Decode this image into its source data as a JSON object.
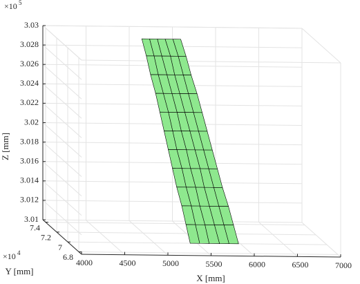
{
  "chart_data": {
    "type": "surface",
    "x_label": "X [mm]",
    "y_label": "Y [mm]",
    "z_label": "Z [mm]",
    "y_scale_base": "×10",
    "y_scale_exp": "4",
    "z_scale_base": "×10",
    "z_scale_exp": "5",
    "color": "#8ee88e",
    "edge_color": "#000000",
    "grid": true,
    "xlim": [
      4000,
      7000
    ],
    "xticks": [
      4000,
      4500,
      5000,
      5500,
      6000,
      6500,
      7000
    ],
    "ylim": [
      67500,
      74500
    ],
    "yticks": [
      {
        "value": 68000,
        "label": "6.8"
      },
      {
        "value": 70000,
        "label": "7"
      },
      {
        "value": 72000,
        "label": "7.2"
      },
      {
        "value": 74000,
        "label": "7.4"
      }
    ],
    "zlim": [
      301000,
      303000
    ],
    "zticks": [
      {
        "value": 301000,
        "label": "3.01"
      },
      {
        "value": 301200,
        "label": "3.012"
      },
      {
        "value": 301400,
        "label": "3.014"
      },
      {
        "value": 301600,
        "label": "3.016"
      },
      {
        "value": 301800,
        "label": "3.018"
      },
      {
        "value": 302000,
        "label": "3.02"
      },
      {
        "value": 302200,
        "label": "3.022"
      },
      {
        "value": 302400,
        "label": "3.024"
      },
      {
        "value": 302600,
        "label": "3.026"
      },
      {
        "value": 302800,
        "label": "3.028"
      },
      {
        "value": 303000,
        "label": "3.03"
      }
    ],
    "z": [
      301100,
      301270,
      301440,
      301610,
      301780,
      301950,
      302120,
      302290,
      302460,
      302630,
      302800,
      302950
    ],
    "y": [
      68000,
      68450,
      68900,
      69350,
      69800,
      70250,
      70700,
      71150,
      71600,
      72050,
      72500,
      73000
    ],
    "x": [
      [
        5290,
        5400,
        5510,
        5630,
        5740,
        5850
      ],
      [
        5270,
        5380,
        5490,
        5600,
        5710,
        5820
      ],
      [
        5250,
        5360,
        5460,
        5570,
        5680,
        5790
      ],
      [
        5220,
        5330,
        5440,
        5540,
        5650,
        5750
      ],
      [
        5200,
        5310,
        5410,
        5520,
        5620,
        5720
      ],
      [
        5180,
        5280,
        5390,
        5490,
        5590,
        5690
      ],
      [
        5160,
        5260,
        5360,
        5460,
        5560,
        5660
      ],
      [
        5140,
        5240,
        5340,
        5430,
        5530,
        5630
      ],
      [
        5120,
        5210,
        5310,
        5400,
        5500,
        5600
      ],
      [
        5090,
        5180,
        5280,
        5370,
        5470,
        5560
      ],
      [
        5070,
        5160,
        5250,
        5350,
        5440,
        5530
      ],
      [
        5050,
        5140,
        5230,
        5320,
        5410,
        5500
      ]
    ]
  }
}
